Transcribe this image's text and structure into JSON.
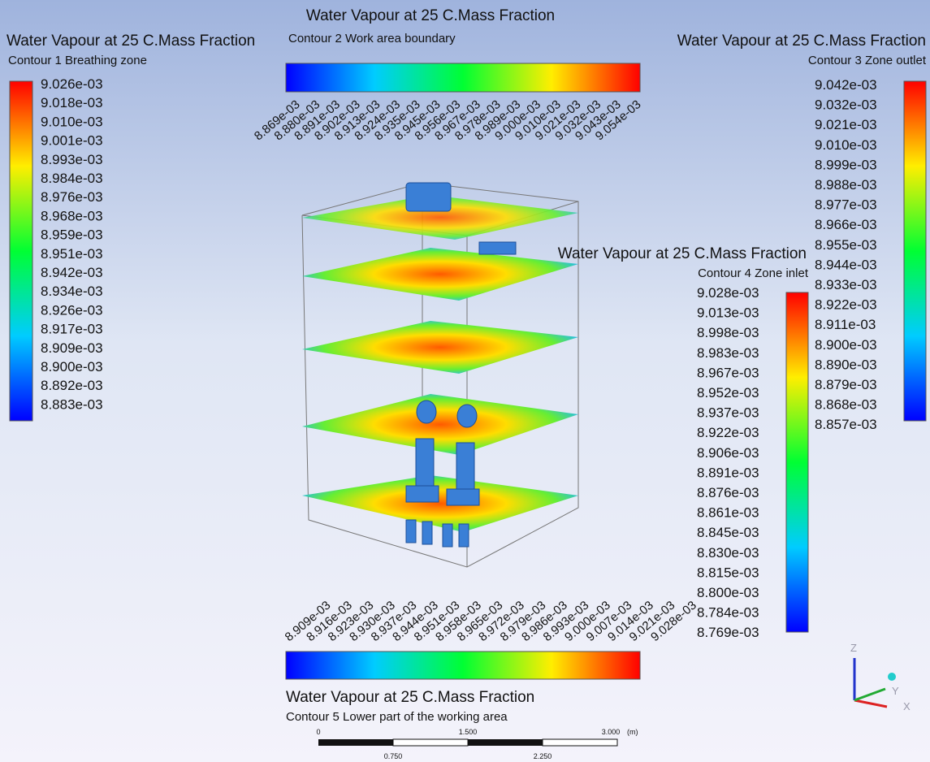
{
  "legends": [
    {
      "title": "Water Vapour at 25 C.Mass Fraction",
      "subtitle": "Contour 1 Breathing zone",
      "labels": [
        "9.026e-03",
        "9.018e-03",
        "9.010e-03",
        "9.001e-03",
        "8.993e-03",
        "8.984e-03",
        "8.976e-03",
        "8.968e-03",
        "8.959e-03",
        "8.951e-03",
        "8.942e-03",
        "8.934e-03",
        "8.926e-03",
        "8.917e-03",
        "8.909e-03",
        "8.900e-03",
        "8.892e-03",
        "8.883e-03"
      ]
    },
    {
      "title": "Water Vapour at 25 C.Mass Fraction",
      "subtitle": "Contour 2 Work area boundary",
      "labels": [
        "8.869e-03",
        "8.880e-03",
        "8.891e-03",
        "8.902e-03",
        "8.913e-03",
        "8.924e-03",
        "8.935e-03",
        "8.945e-03",
        "8.956e-03",
        "8.967e-03",
        "8.978e-03",
        "8.989e-03",
        "9.000e-03",
        "9.010e-03",
        "9.021e-03",
        "9.032e-03",
        "9.043e-03",
        "9.054e-03"
      ]
    },
    {
      "title": "Water Vapour at 25 C.Mass Fraction",
      "subtitle": "Contour 3 Zone outlet",
      "labels": [
        "9.042e-03",
        "9.032e-03",
        "9.021e-03",
        "9.010e-03",
        "8.999e-03",
        "8.988e-03",
        "8.977e-03",
        "8.966e-03",
        "8.955e-03",
        "8.944e-03",
        "8.933e-03",
        "8.922e-03",
        "8.911e-03",
        "8.900e-03",
        "8.890e-03",
        "8.879e-03",
        "8.868e-03",
        "8.857e-03"
      ]
    },
    {
      "title": "Water Vapour at 25 C.Mass Fraction",
      "subtitle": "Contour 4 Zone inlet",
      "labels": [
        "9.028e-03",
        "9.013e-03",
        "8.998e-03",
        "8.983e-03",
        "8.967e-03",
        "8.952e-03",
        "8.937e-03",
        "8.922e-03",
        "8.906e-03",
        "8.891e-03",
        "8.876e-03",
        "8.861e-03",
        "8.845e-03",
        "8.830e-03",
        "8.815e-03",
        "8.800e-03",
        "8.784e-03",
        "8.769e-03"
      ]
    },
    {
      "title": "Water Vapour at 25 C.Mass Fraction",
      "subtitle": "Contour 5 Lower part of the working area",
      "labels": [
        "8.909e-03",
        "8.916e-03",
        "8.923e-03",
        "8.930e-03",
        "8.937e-03",
        "8.944e-03",
        "8.951e-03",
        "8.958e-03",
        "8.965e-03",
        "8.972e-03",
        "8.979e-03",
        "8.986e-03",
        "8.993e-03",
        "9.000e-03",
        "9.007e-03",
        "9.014e-03",
        "9.021e-03",
        "9.028e-03"
      ]
    }
  ],
  "scale_bar": {
    "top_labels": [
      "0",
      "1.500",
      "3.000"
    ],
    "unit": "(m)",
    "bottom_labels": [
      "0.750",
      "2.250"
    ]
  },
  "axes": {
    "z": "Z",
    "y": "Y",
    "x": "X"
  }
}
